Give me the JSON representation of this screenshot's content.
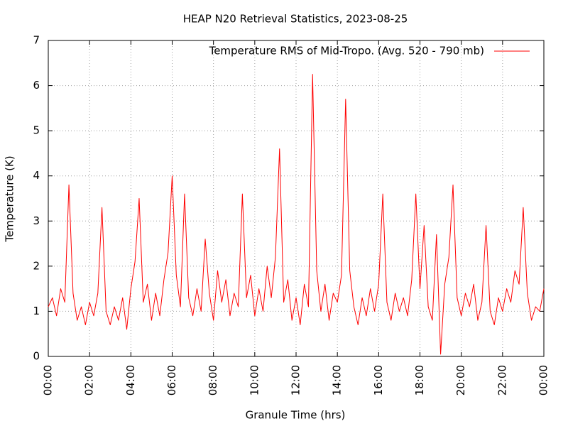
{
  "chart_data": {
    "type": "line",
    "title": "HEAP N20 Retrieval Statistics, 2023-08-25",
    "x_label": "Granule Time (hrs)",
    "y_label": "Temperature (K)",
    "legend": "upper right",
    "grid": true,
    "xlim": [
      0,
      24
    ],
    "ylim": [
      0,
      7
    ],
    "xticks": [
      {
        "value": 0,
        "label": "00:00"
      },
      {
        "value": 2,
        "label": "02:00"
      },
      {
        "value": 4,
        "label": "04:00"
      },
      {
        "value": 6,
        "label": "06:00"
      },
      {
        "value": 8,
        "label": "08:00"
      },
      {
        "value": 10,
        "label": "10:00"
      },
      {
        "value": 12,
        "label": "12:00"
      },
      {
        "value": 14,
        "label": "14:00"
      },
      {
        "value": 16,
        "label": "16:00"
      },
      {
        "value": 18,
        "label": "18:00"
      },
      {
        "value": 20,
        "label": "20:00"
      },
      {
        "value": 22,
        "label": "22:00"
      },
      {
        "value": 24,
        "label": "00:00"
      }
    ],
    "yticks": [
      0,
      1,
      2,
      3,
      4,
      5,
      6,
      7
    ],
    "x": [
      0,
      0.2,
      0.4,
      0.6,
      0.8,
      1,
      1.2,
      1.4,
      1.6,
      1.8,
      2,
      2.2,
      2.4,
      2.6,
      2.8,
      3,
      3.2,
      3.4,
      3.6,
      3.8,
      4,
      4.2,
      4.4,
      4.6,
      4.8,
      5,
      5.2,
      5.4,
      5.6,
      5.8,
      6,
      6.2,
      6.4,
      6.6,
      6.8,
      7,
      7.2,
      7.4,
      7.6,
      7.8,
      8,
      8.2,
      8.4,
      8.6,
      8.8,
      9,
      9.2,
      9.4,
      9.6,
      9.8,
      10,
      10.2,
      10.4,
      10.6,
      10.8,
      11,
      11.2,
      11.4,
      11.6,
      11.8,
      12,
      12.2,
      12.4,
      12.6,
      12.8,
      13,
      13.2,
      13.4,
      13.6,
      13.8,
      14,
      14.2,
      14.4,
      14.6,
      14.8,
      15,
      15.2,
      15.4,
      15.6,
      15.8,
      16,
      16.2,
      16.4,
      16.6,
      16.8,
      17,
      17.2,
      17.4,
      17.6,
      17.8,
      18,
      18.2,
      18.4,
      18.6,
      18.8,
      19,
      19.2,
      19.4,
      19.6,
      19.8,
      20,
      20.2,
      20.4,
      20.6,
      20.8,
      21,
      21.2,
      21.4,
      21.6,
      21.8,
      22,
      22.2,
      22.4,
      22.6,
      22.8,
      23,
      23.2,
      23.4,
      23.6,
      23.8,
      24
    ],
    "series": [
      {
        "name": "Temperature RMS of Mid-Tropo. (Avg. 520 - 790 mb)",
        "color": "#ff0000",
        "values": [
          1.1,
          1.3,
          0.9,
          1.5,
          1.2,
          3.8,
          1.4,
          0.8,
          1.1,
          0.7,
          1.2,
          0.9,
          1.4,
          3.3,
          1.0,
          0.7,
          1.1,
          0.8,
          1.3,
          0.6,
          1.5,
          2.1,
          3.5,
          1.2,
          1.6,
          0.8,
          1.4,
          0.9,
          1.7,
          2.3,
          4.0,
          1.8,
          1.1,
          3.6,
          1.3,
          0.9,
          1.5,
          1.0,
          2.6,
          1.4,
          0.8,
          1.9,
          1.2,
          1.7,
          0.9,
          1.4,
          1.1,
          3.6,
          1.3,
          1.8,
          0.9,
          1.5,
          1.0,
          2.0,
          1.3,
          2.2,
          4.6,
          1.2,
          1.7,
          0.8,
          1.3,
          0.7,
          1.6,
          1.1,
          6.25,
          1.9,
          1.0,
          1.6,
          0.8,
          1.4,
          1.2,
          1.8,
          5.7,
          1.9,
          1.1,
          0.7,
          1.3,
          0.9,
          1.5,
          1.0,
          1.6,
          3.6,
          1.2,
          0.8,
          1.4,
          1.0,
          1.3,
          0.9,
          1.7,
          3.6,
          1.5,
          2.9,
          1.1,
          0.8,
          2.7,
          0.05,
          1.6,
          2.2,
          3.8,
          1.3,
          0.9,
          1.4,
          1.1,
          1.6,
          0.8,
          1.2,
          2.9,
          1.0,
          0.7,
          1.3,
          1.0,
          1.5,
          1.2,
          1.9,
          1.6,
          3.3,
          1.4,
          0.8,
          1.1,
          1.0,
          1.5
        ]
      }
    ]
  }
}
